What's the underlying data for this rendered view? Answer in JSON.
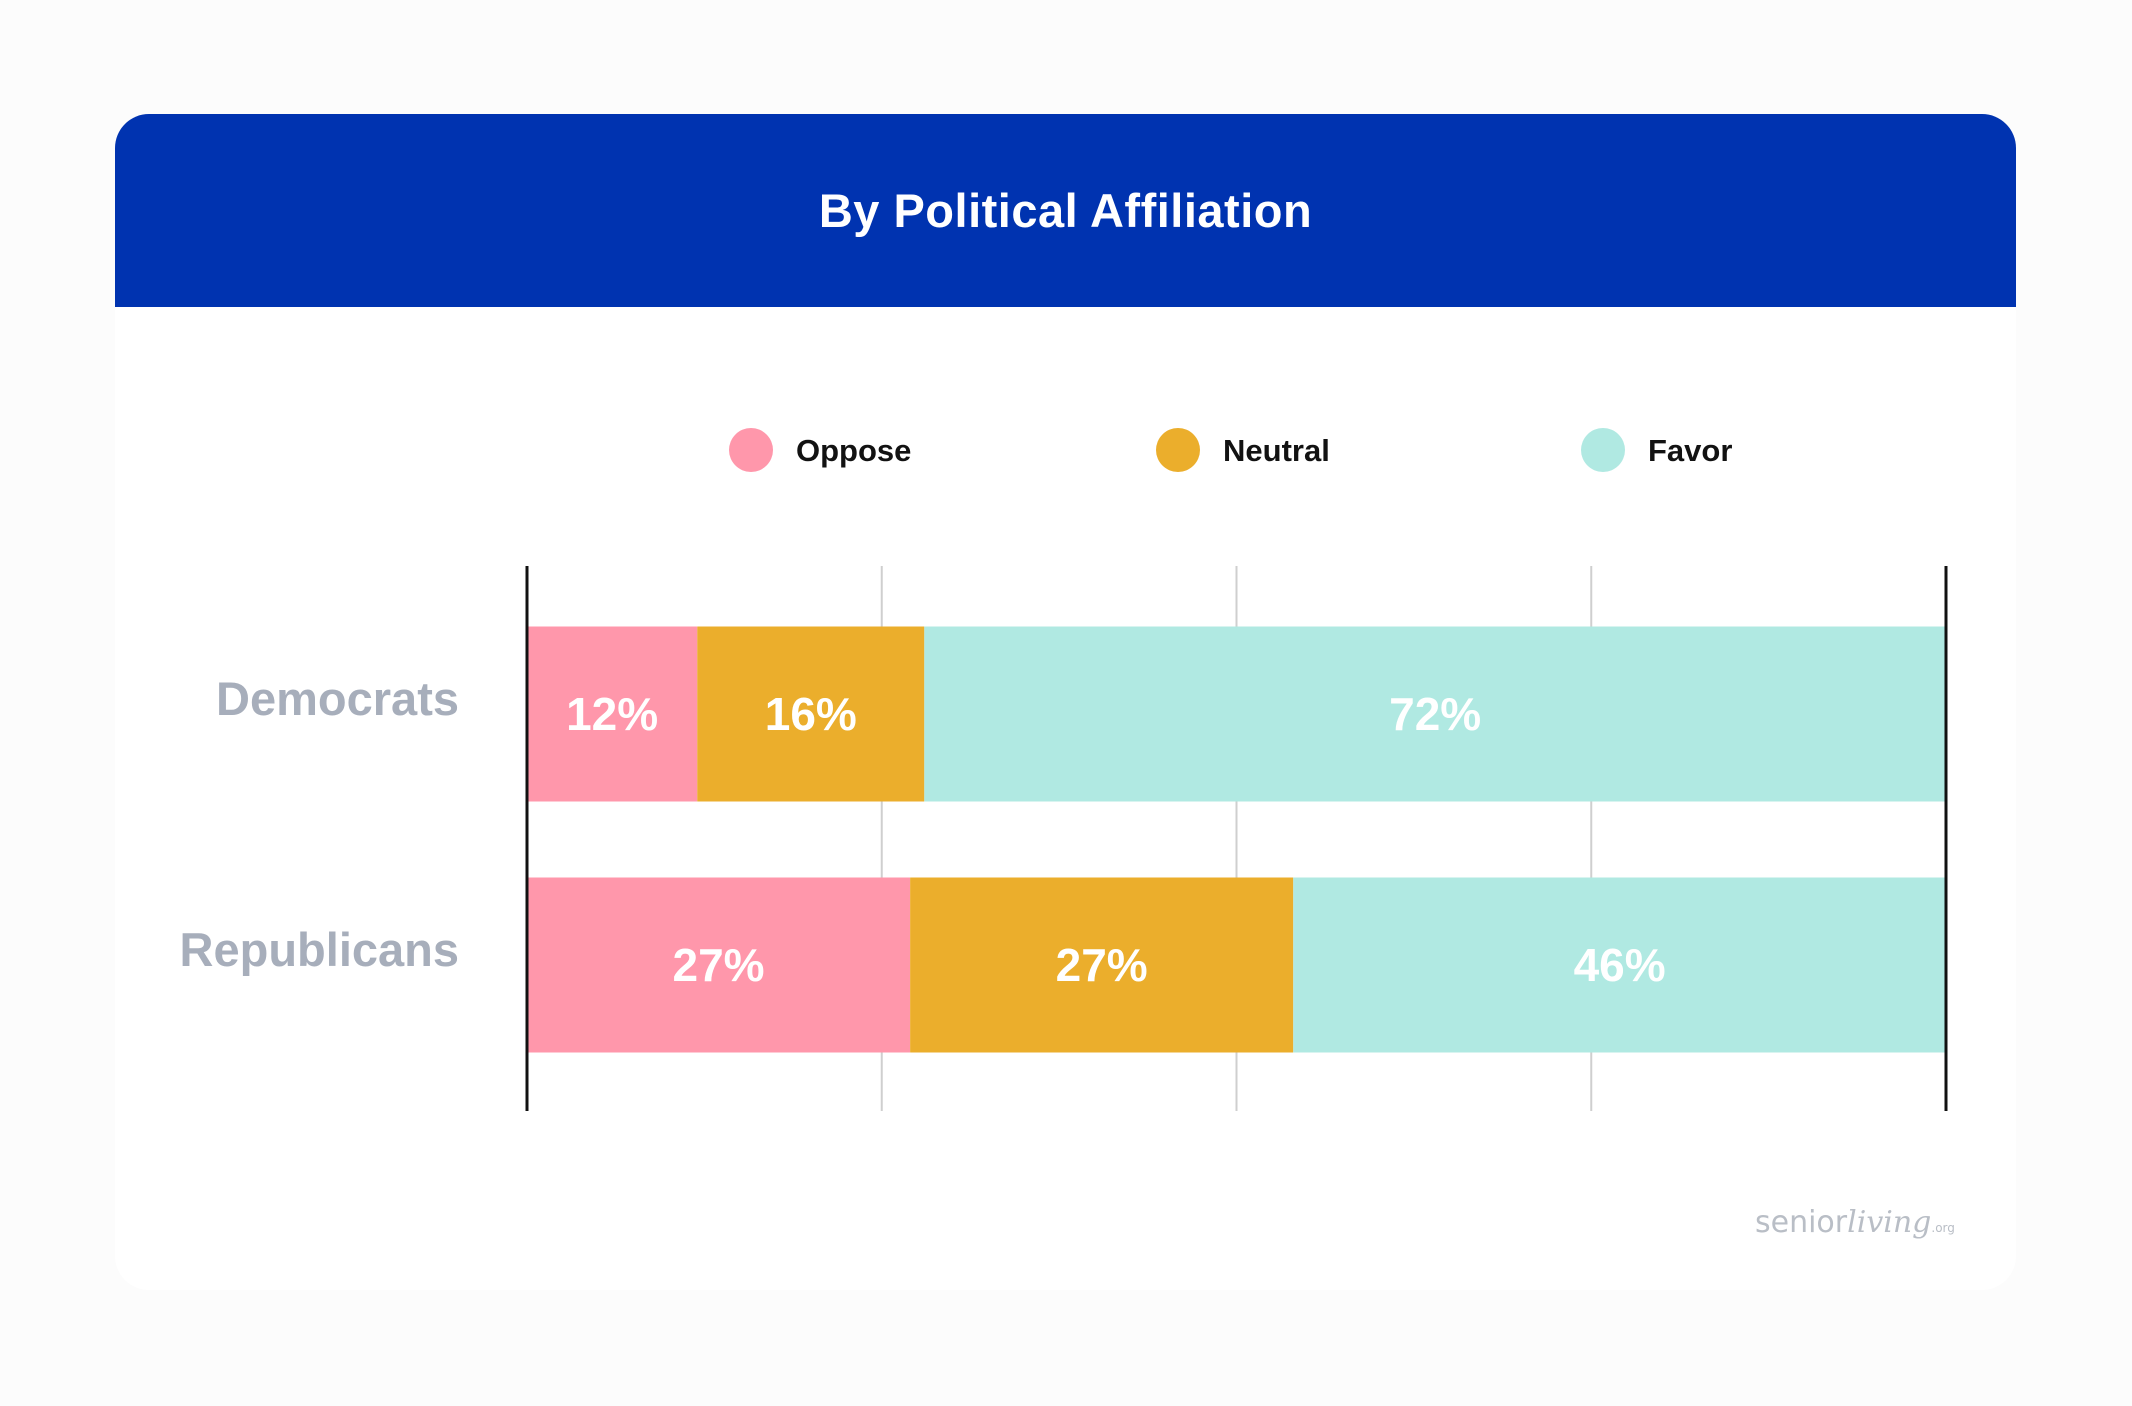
{
  "colors": {
    "header": "#0033b0",
    "oppose": "#ff97ab",
    "neutral": "#ebae2c",
    "favor": "#b0e9e2",
    "category_label": "#a7aebb"
  },
  "logo": {
    "part1": "senior",
    "part2": "living",
    "part3": ".org"
  },
  "chart_data": {
    "type": "bar",
    "orientation": "horizontal",
    "stacked": true,
    "title": "By Political Affiliation",
    "categories": [
      "Democrats",
      "Republicans"
    ],
    "series": [
      {
        "name": "Oppose",
        "values": [
          12,
          27
        ],
        "labels": [
          "12%",
          "27%"
        ],
        "color": "#ff97ab"
      },
      {
        "name": "Neutral",
        "values": [
          16,
          27
        ],
        "labels": [
          "16%",
          "27%"
        ],
        "color": "#ebae2c"
      },
      {
        "name": "Favor",
        "values": [
          72,
          46
        ],
        "labels": [
          "72%",
          "46%"
        ],
        "color": "#b0e9e2"
      }
    ],
    "xlim": [
      0,
      100
    ],
    "grid": true,
    "legend": "top"
  }
}
